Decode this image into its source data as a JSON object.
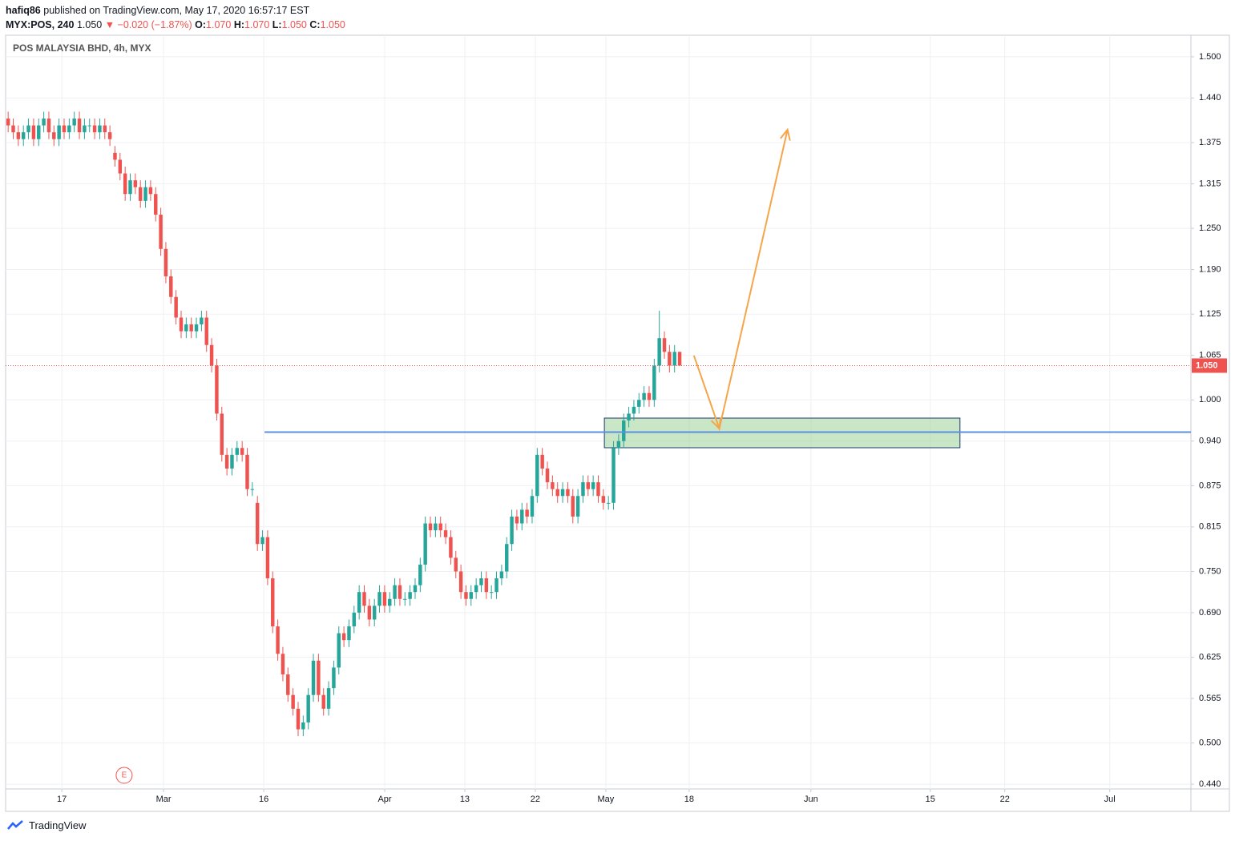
{
  "header": {
    "author": "hafiq86",
    "published": "published on TradingView.com, May 17, 2020 16:57:17 EST"
  },
  "quote": {
    "symbol": "MYX:POS, 240",
    "last": "1.050",
    "change": "▼ −0.020 (−1.87%)",
    "o_label": "O:",
    "o": "1.070",
    "h_label": "H:",
    "h": "1.070",
    "l_label": "L:",
    "l": "1.050",
    "c_label": "C:",
    "c": "1.050"
  },
  "footer": {
    "brand": "TradingView"
  },
  "chart_data": {
    "type": "candlestick",
    "title": "POS MALAYSIA BHD, 4h, MYX",
    "up_color": "#26a69a",
    "down_color": "#ef5350",
    "open": [
      1.41,
      1.4,
      1.39,
      1.38,
      1.39,
      1.4,
      1.38,
      1.4,
      1.41,
      1.39,
      1.38,
      1.4,
      1.39,
      1.4,
      1.41,
      1.39,
      1.4,
      1.4,
      1.39,
      1.4,
      1.39,
      1.36,
      1.35,
      1.33,
      1.3,
      1.32,
      1.31,
      1.29,
      1.31,
      1.3,
      1.27,
      1.22,
      1.18,
      1.15,
      1.12,
      1.1,
      1.11,
      1.1,
      1.11,
      1.12,
      1.08,
      1.05,
      0.98,
      0.92,
      0.9,
      0.92,
      0.93,
      0.92,
      0.87,
      0.85,
      0.79,
      0.8,
      0.74,
      0.67,
      0.63,
      0.6,
      0.57,
      0.55,
      0.52,
      0.53,
      0.57,
      0.62,
      0.57,
      0.55,
      0.58,
      0.61,
      0.66,
      0.65,
      0.67,
      0.69,
      0.72,
      0.7,
      0.68,
      0.7,
      0.72,
      0.7,
      0.71,
      0.73,
      0.71,
      0.71,
      0.72,
      0.73,
      0.76,
      0.82,
      0.81,
      0.82,
      0.81,
      0.8,
      0.77,
      0.75,
      0.72,
      0.71,
      0.72,
      0.73,
      0.74,
      0.72,
      0.72,
      0.74,
      0.75,
      0.79,
      0.83,
      0.82,
      0.84,
      0.83,
      0.86,
      0.92,
      0.9,
      0.88,
      0.87,
      0.86,
      0.87,
      0.86,
      0.83,
      0.86,
      0.88,
      0.87,
      0.88,
      0.86,
      0.85,
      0.85,
      0.93,
      0.94,
      0.97,
      0.98,
      0.99,
      1.0,
      1.01,
      1.0,
      1.05,
      1.09,
      1.07,
      1.05,
      1.07
    ],
    "high": [
      1.42,
      1.41,
      1.4,
      1.4,
      1.41,
      1.41,
      1.41,
      1.42,
      1.42,
      1.4,
      1.41,
      1.41,
      1.41,
      1.42,
      1.42,
      1.41,
      1.41,
      1.41,
      1.41,
      1.41,
      1.4,
      1.37,
      1.36,
      1.34,
      1.33,
      1.33,
      1.32,
      1.32,
      1.32,
      1.31,
      1.28,
      1.23,
      1.19,
      1.16,
      1.13,
      1.12,
      1.12,
      1.12,
      1.13,
      1.13,
      1.09,
      1.06,
      0.99,
      0.93,
      0.93,
      0.94,
      0.94,
      0.93,
      0.88,
      0.86,
      0.81,
      0.81,
      0.75,
      0.68,
      0.64,
      0.61,
      0.58,
      0.56,
      0.54,
      0.58,
      0.63,
      0.63,
      0.58,
      0.59,
      0.62,
      0.67,
      0.67,
      0.68,
      0.7,
      0.73,
      0.73,
      0.71,
      0.71,
      0.73,
      0.73,
      0.72,
      0.74,
      0.74,
      0.72,
      0.73,
      0.74,
      0.77,
      0.83,
      0.83,
      0.83,
      0.83,
      0.82,
      0.81,
      0.78,
      0.76,
      0.73,
      0.73,
      0.74,
      0.75,
      0.75,
      0.73,
      0.75,
      0.76,
      0.8,
      0.84,
      0.84,
      0.85,
      0.85,
      0.87,
      0.93,
      0.93,
      0.91,
      0.89,
      0.88,
      0.88,
      0.88,
      0.87,
      0.87,
      0.89,
      0.89,
      0.89,
      0.89,
      0.87,
      0.86,
      0.94,
      0.95,
      0.98,
      0.99,
      1.0,
      1.01,
      1.02,
      1.02,
      1.06,
      1.13,
      1.1,
      1.08,
      1.08,
      1.07
    ],
    "low": [
      1.39,
      1.38,
      1.37,
      1.37,
      1.38,
      1.37,
      1.37,
      1.39,
      1.38,
      1.37,
      1.37,
      1.38,
      1.38,
      1.39,
      1.38,
      1.38,
      1.39,
      1.38,
      1.38,
      1.38,
      1.37,
      1.34,
      1.32,
      1.29,
      1.29,
      1.3,
      1.28,
      1.28,
      1.29,
      1.26,
      1.21,
      1.17,
      1.14,
      1.11,
      1.09,
      1.09,
      1.09,
      1.09,
      1.1,
      1.07,
      1.04,
      0.97,
      0.91,
      0.89,
      0.89,
      0.91,
      0.91,
      0.86,
      0.86,
      0.78,
      0.78,
      0.73,
      0.66,
      0.62,
      0.59,
      0.56,
      0.54,
      0.51,
      0.51,
      0.52,
      0.56,
      0.56,
      0.54,
      0.54,
      0.57,
      0.6,
      0.64,
      0.64,
      0.66,
      0.68,
      0.69,
      0.67,
      0.67,
      0.69,
      0.69,
      0.69,
      0.7,
      0.7,
      0.7,
      0.7,
      0.71,
      0.72,
      0.75,
      0.8,
      0.8,
      0.8,
      0.79,
      0.76,
      0.74,
      0.71,
      0.7,
      0.7,
      0.71,
      0.72,
      0.71,
      0.71,
      0.71,
      0.73,
      0.74,
      0.78,
      0.81,
      0.81,
      0.82,
      0.82,
      0.85,
      0.89,
      0.87,
      0.86,
      0.85,
      0.85,
      0.85,
      0.82,
      0.82,
      0.85,
      0.86,
      0.86,
      0.85,
      0.84,
      0.84,
      0.84,
      0.92,
      0.93,
      0.96,
      0.97,
      0.98,
      0.99,
      0.99,
      0.99,
      1.04,
      1.06,
      1.04,
      1.04,
      1.05
    ],
    "close": [
      1.4,
      1.39,
      1.38,
      1.39,
      1.4,
      1.38,
      1.4,
      1.41,
      1.39,
      1.38,
      1.4,
      1.39,
      1.4,
      1.41,
      1.39,
      1.4,
      1.4,
      1.39,
      1.4,
      1.39,
      1.38,
      1.35,
      1.33,
      1.3,
      1.32,
      1.31,
      1.29,
      1.31,
      1.3,
      1.27,
      1.22,
      1.18,
      1.15,
      1.12,
      1.1,
      1.11,
      1.1,
      1.11,
      1.12,
      1.08,
      1.05,
      0.98,
      0.92,
      0.9,
      0.92,
      0.93,
      0.92,
      0.87,
      0.87,
      0.79,
      0.8,
      0.74,
      0.67,
      0.63,
      0.6,
      0.57,
      0.55,
      0.52,
      0.53,
      0.57,
      0.62,
      0.57,
      0.55,
      0.58,
      0.61,
      0.66,
      0.65,
      0.67,
      0.69,
      0.72,
      0.7,
      0.68,
      0.7,
      0.72,
      0.7,
      0.71,
      0.73,
      0.71,
      0.71,
      0.72,
      0.73,
      0.76,
      0.82,
      0.81,
      0.82,
      0.81,
      0.8,
      0.77,
      0.75,
      0.72,
      0.71,
      0.72,
      0.73,
      0.74,
      0.72,
      0.72,
      0.74,
      0.75,
      0.79,
      0.83,
      0.82,
      0.84,
      0.83,
      0.86,
      0.92,
      0.9,
      0.88,
      0.87,
      0.86,
      0.87,
      0.86,
      0.83,
      0.86,
      0.88,
      0.87,
      0.88,
      0.86,
      0.85,
      0.85,
      0.93,
      0.94,
      0.97,
      0.98,
      0.99,
      1.0,
      1.01,
      1.0,
      1.05,
      1.09,
      1.07,
      1.05,
      1.07,
      1.05
    ],
    "xlim": [
      -0.5,
      232.5
    ],
    "xticks": [
      {
        "value": 10.55,
        "label": "17"
      },
      {
        "value": 30.55,
        "label": "Mar"
      },
      {
        "value": 50.24,
        "label": "16"
      },
      {
        "value": 74.02,
        "label": "Apr"
      },
      {
        "value": 89.76,
        "label": "13"
      },
      {
        "value": 103.62,
        "label": "22"
      },
      {
        "value": 117.48,
        "label": "May"
      },
      {
        "value": 133.86,
        "label": "18"
      },
      {
        "value": 157.8,
        "label": "Jun"
      },
      {
        "value": 181.26,
        "label": "15"
      },
      {
        "value": 195.91,
        "label": "22"
      },
      {
        "value": 216.54,
        "label": "Jul"
      }
    ],
    "ylim": [
      0.4331,
      1.5314
    ],
    "yticks": [
      {
        "value": 1.5,
        "label": "1.500"
      },
      {
        "value": 1.44,
        "label": "1.440"
      },
      {
        "value": 1.375,
        "label": "1.375"
      },
      {
        "value": 1.315,
        "label": "1.315"
      },
      {
        "value": 1.25,
        "label": "1.250"
      },
      {
        "value": 1.19,
        "label": "1.190"
      },
      {
        "value": 1.125,
        "label": "1.125"
      },
      {
        "value": 1.065,
        "label": "1.065"
      },
      {
        "value": 1.0,
        "label": "1.000"
      },
      {
        "value": 0.94,
        "label": "0.940"
      },
      {
        "value": 0.875,
        "label": "0.875"
      },
      {
        "value": 0.815,
        "label": "0.815"
      },
      {
        "value": 0.75,
        "label": "0.750"
      },
      {
        "value": 0.69,
        "label": "0.690"
      },
      {
        "value": 0.625,
        "label": "0.625"
      },
      {
        "value": 0.565,
        "label": "0.565"
      },
      {
        "value": 0.5,
        "label": "0.500"
      },
      {
        "value": 0.44,
        "label": "0.440"
      }
    ],
    "grid": true,
    "last_price": {
      "value": 1.05,
      "label": "1.050"
    },
    "events": [
      {
        "label": "E",
        "x": 22.8
      }
    ],
    "drawings": {
      "level": {
        "price": 0.953,
        "from": 50.4,
        "color": "#5b8fe0"
      },
      "zone": {
        "top": 0.9735,
        "bottom": 0.9303,
        "from": 117.2,
        "to": 187.1,
        "color": "#a5d6a0"
      },
      "path": {
        "x": [
          134.8,
          139.8,
          153.2
        ],
        "y": [
          1.0646,
          0.9583,
          1.3938
        ],
        "color": "#f5a54a"
      }
    }
  }
}
